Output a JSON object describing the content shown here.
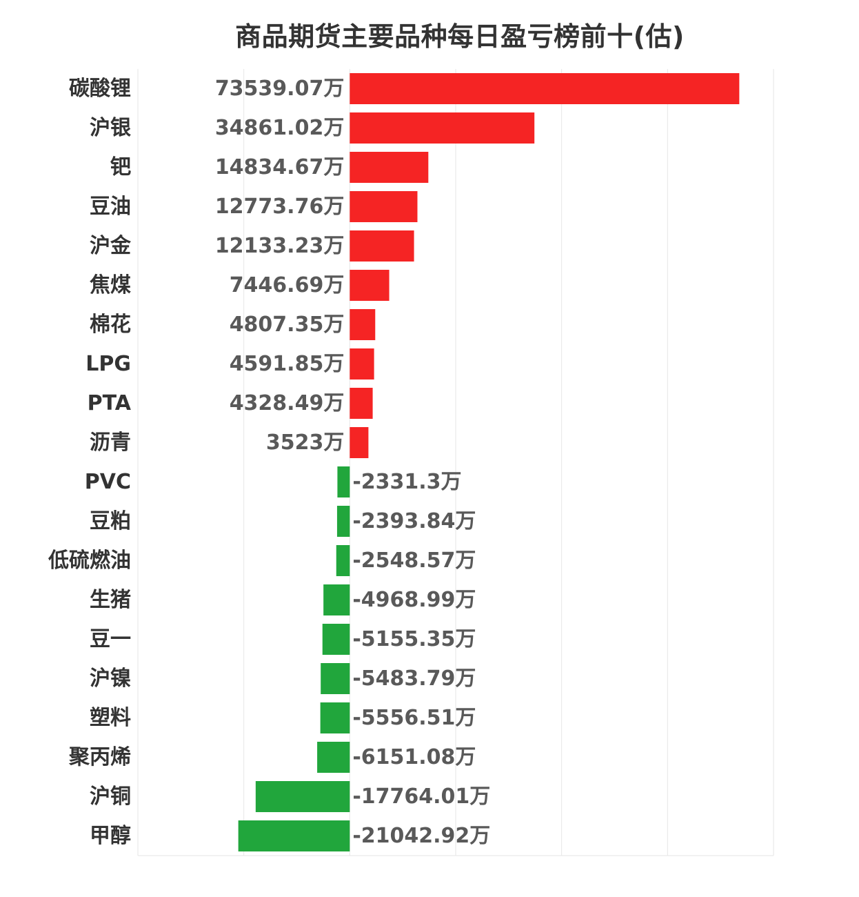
{
  "chart_data": {
    "type": "bar",
    "orientation": "horizontal",
    "title": "商品期货主要品种每日盈亏榜前十(估)",
    "unit": "万",
    "categories": [
      "碳酸锂",
      "沪银",
      "钯",
      "豆油",
      "沪金",
      "焦煤",
      "棉花",
      "LPG",
      "PTA",
      "沥青",
      "PVC",
      "豆粕",
      "低硫燃油",
      "生猪",
      "豆一",
      "沪镍",
      "塑料",
      "聚丙烯",
      "沪铜",
      "甲醇"
    ],
    "values": [
      73539.07,
      34861.02,
      14834.67,
      12773.76,
      12133.23,
      7446.69,
      4807.35,
      4591.85,
      4328.49,
      3523,
      -2331.3,
      -2393.84,
      -2548.57,
      -4968.99,
      -5155.35,
      -5483.79,
      -5556.51,
      -6151.08,
      -17764.01,
      -21042.92
    ],
    "value_labels": [
      "73539.07万",
      "34861.02万",
      "14834.67万",
      "12773.76万",
      "12133.23万",
      "7446.69万",
      "4807.35万",
      "4591.85万",
      "4328.49万",
      "3523万",
      "-2331.3万",
      "-2393.84万",
      "-2548.57万",
      "-4968.99万",
      "-5155.35万",
      "-5483.79万",
      "-5556.51万",
      "-6151.08万",
      "-17764.01万",
      "-21042.92万"
    ],
    "xlim": [
      -40000,
      80000
    ],
    "grid": true,
    "colors": {
      "positive": "#f52424",
      "negative": "#21a63c",
      "grid": "#e6e6e6"
    }
  }
}
